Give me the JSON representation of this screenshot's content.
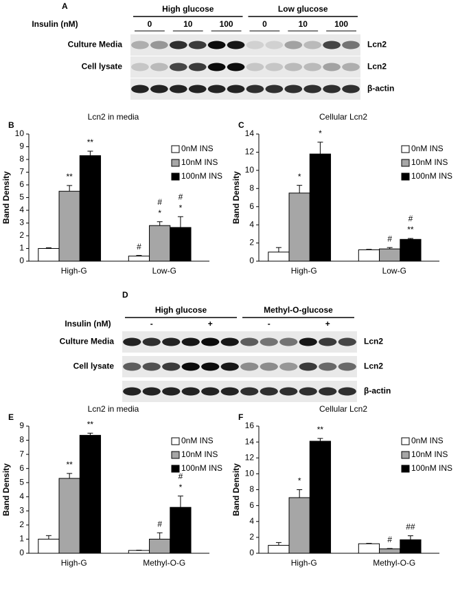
{
  "blots": [
    {
      "panel": "A",
      "groups": [
        "High glucose",
        "Low glucose"
      ],
      "insulin_label": "Insulin (nM)",
      "insulin_doses": [
        "0",
        "10",
        "100",
        "0",
        "10",
        "100"
      ],
      "rows": [
        "Culture Media",
        "Cell lysate"
      ],
      "row_tags": [
        "Lcn2",
        "Lcn2",
        "β-actin"
      ]
    },
    {
      "panel": "D",
      "groups": [
        "High glucose",
        "Methyl-O-glucose"
      ],
      "insulin_label": "Insulin (nM)",
      "insulin_doses": [
        "-",
        "+",
        "-",
        "+"
      ],
      "rows": [
        "Culture Media",
        "Cell lysate"
      ],
      "row_tags": [
        "Lcn2",
        "Lcn2",
        "β-actin"
      ]
    }
  ],
  "chart_data": [
    {
      "type": "bar",
      "panel": "B",
      "title": "Lcn2 in media",
      "ylabel": "Band Density",
      "categories": [
        "High-G",
        "Low-G"
      ],
      "ylim": [
        0,
        10
      ],
      "yticks": [
        0,
        1,
        2,
        3,
        4,
        5,
        6,
        7,
        8,
        9,
        10
      ],
      "series": [
        {
          "name": "0nM INS",
          "color": "#ffffff",
          "values": [
            1.0,
            0.4
          ],
          "errors": [
            0.05,
            0.05
          ],
          "annotations": [
            null,
            [
              "#"
            ]
          ]
        },
        {
          "name": "10nM INS",
          "color": "#a6a6a6",
          "values": [
            5.5,
            2.8
          ],
          "errors": [
            0.45,
            0.3
          ],
          "annotations": [
            [
              "**"
            ],
            [
              "#",
              "*"
            ]
          ]
        },
        {
          "name": "100nM INS",
          "color": "#000000",
          "values": [
            8.3,
            2.65
          ],
          "errors": [
            0.35,
            0.85
          ],
          "annotations": [
            [
              "**"
            ],
            [
              "#",
              "*"
            ]
          ]
        }
      ]
    },
    {
      "type": "bar",
      "panel": "C",
      "title": "Cellular Lcn2",
      "ylabel": "Band Density",
      "categories": [
        "High-G",
        "Low-G"
      ],
      "ylim": [
        0,
        14
      ],
      "yticks": [
        0,
        2,
        4,
        6,
        8,
        10,
        12,
        14
      ],
      "series": [
        {
          "name": "0nM INS",
          "color": "#ffffff",
          "values": [
            1.0,
            1.25
          ],
          "errors": [
            0.5,
            0.05
          ],
          "annotations": [
            null,
            null
          ]
        },
        {
          "name": "10nM INS",
          "color": "#a6a6a6",
          "values": [
            7.5,
            1.35
          ],
          "errors": [
            0.85,
            0.15
          ],
          "annotations": [
            [
              "*"
            ],
            [
              "#"
            ]
          ]
        },
        {
          "name": "100nM INS",
          "color": "#000000",
          "values": [
            11.8,
            2.4
          ],
          "errors": [
            1.3,
            0.1
          ],
          "annotations": [
            [
              "*"
            ],
            [
              "#",
              "**"
            ]
          ]
        }
      ]
    },
    {
      "type": "bar",
      "panel": "E",
      "title": "Lcn2 in media",
      "ylabel": "Band Density",
      "categories": [
        "High-G",
        "Methyl-O-G"
      ],
      "ylim": [
        0,
        9
      ],
      "yticks": [
        0,
        1,
        2,
        3,
        4,
        5,
        6,
        7,
        8,
        9
      ],
      "series": [
        {
          "name": "0nM INS",
          "color": "#ffffff",
          "values": [
            1.0,
            0.2
          ],
          "errors": [
            0.25,
            0.02
          ],
          "annotations": [
            null,
            null
          ]
        },
        {
          "name": "10nM INS",
          "color": "#a6a6a6",
          "values": [
            5.3,
            1.0
          ],
          "errors": [
            0.35,
            0.45
          ],
          "annotations": [
            [
              "**"
            ],
            [
              "#"
            ]
          ]
        },
        {
          "name": "100nM INS",
          "color": "#000000",
          "values": [
            8.35,
            3.25
          ],
          "errors": [
            0.15,
            0.8
          ],
          "annotations": [
            [
              "**"
            ],
            [
              "#",
              "*"
            ]
          ]
        }
      ]
    },
    {
      "type": "bar",
      "panel": "F",
      "title": "Cellular Lcn2",
      "ylabel": "Band Density",
      "categories": [
        "High-G",
        "Methyl-O-G"
      ],
      "ylim": [
        0,
        16
      ],
      "yticks": [
        0,
        2,
        4,
        6,
        8,
        10,
        12,
        14,
        16
      ],
      "series": [
        {
          "name": "0nM INS",
          "color": "#ffffff",
          "values": [
            1.0,
            1.2
          ],
          "errors": [
            0.35,
            0.05
          ],
          "annotations": [
            null,
            null
          ]
        },
        {
          "name": "10nM INS",
          "color": "#a6a6a6",
          "values": [
            7.0,
            0.55
          ],
          "errors": [
            1.0,
            0.05
          ],
          "annotations": [
            [
              "*"
            ],
            [
              "#"
            ]
          ]
        },
        {
          "name": "100nM INS",
          "color": "#000000",
          "values": [
            14.1,
            1.7
          ],
          "errors": [
            0.35,
            0.5
          ],
          "annotations": [
            [
              "**"
            ],
            [
              "##"
            ]
          ]
        }
      ]
    }
  ]
}
